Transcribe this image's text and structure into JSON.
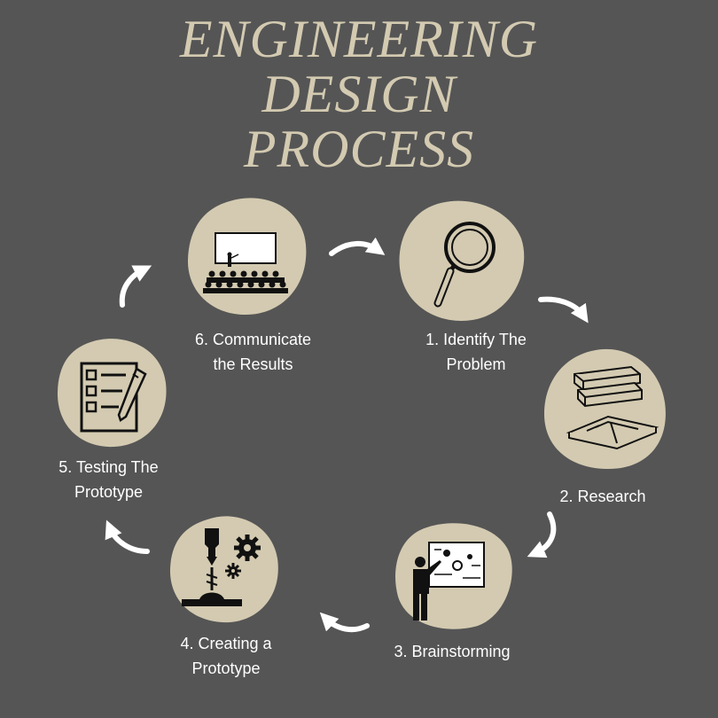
{
  "title": {
    "line1": "ENGINEERING",
    "line2": "DESIGN",
    "line3": "PROCESS"
  },
  "colors": {
    "background": "#555555",
    "blob": "#d3cab1",
    "title": "#d3cab1",
    "icon": "#111111",
    "text": "#ffffff",
    "arrow": "#ffffff"
  },
  "steps": [
    {
      "line1": "1. Identify The",
      "line2": "Problem",
      "icon": "magnifying-glass-icon"
    },
    {
      "line1": "2. Research",
      "line2": "",
      "icon": "books-icon"
    },
    {
      "line1": "3. Brainstorming",
      "line2": "",
      "icon": "presenter-whiteboard-icon"
    },
    {
      "line1": "4. Creating a",
      "line2": "Prototype",
      "icon": "manufacturing-gear-icon"
    },
    {
      "line1": "5. Testing The",
      "line2": "Prototype",
      "icon": "checklist-pen-icon"
    },
    {
      "line1": "6. Communicate",
      "line2": "the Results",
      "icon": "audience-presentation-icon"
    }
  ]
}
